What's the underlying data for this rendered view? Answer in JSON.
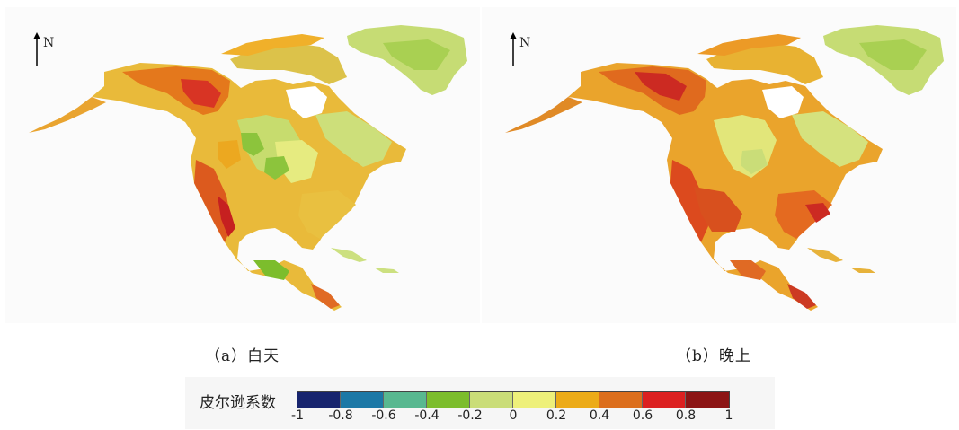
{
  "north_label": "N",
  "panels": [
    {
      "caption": "（a）白天"
    },
    {
      "caption": "（b）晚上"
    }
  ],
  "legend": {
    "title": "皮尔逊系数",
    "ticks": [
      "-1",
      "-0.8",
      "-0.6",
      "-0.4",
      "-0.2",
      "0",
      "0.2",
      "0.4",
      "0.6",
      "0.8",
      "1"
    ],
    "colors": [
      "#17246e",
      "#1c78a6",
      "#58b890",
      "#7cbd2c",
      "#cadd78",
      "#eef07a",
      "#ecab18",
      "#dc6e1c",
      "#dc2020",
      "#8c1414"
    ]
  }
}
